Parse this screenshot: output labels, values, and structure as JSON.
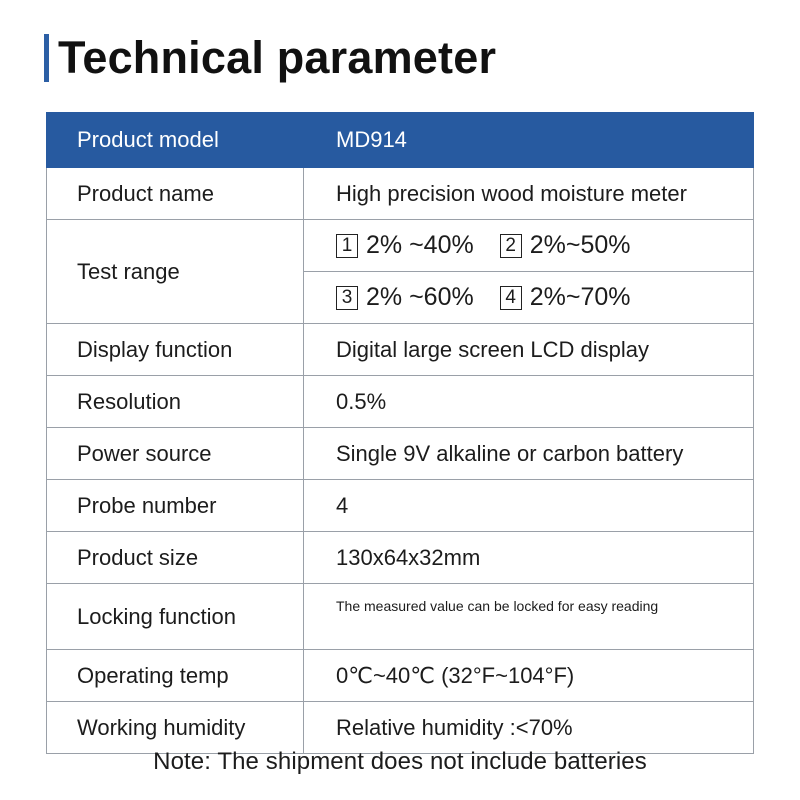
{
  "title": "Technical parameter",
  "table": {
    "header": {
      "label": "Product model",
      "value": "MD914"
    },
    "product_name": {
      "label": "Product name",
      "value": "High precision wood moisture meter"
    },
    "test_range": {
      "label": "Test range",
      "ranges": [
        {
          "num": "1",
          "text": "2% ~40%"
        },
        {
          "num": "2",
          "text": "2%~50%"
        },
        {
          "num": "3",
          "text": "2% ~60%"
        },
        {
          "num": "4",
          "text": "2%~70%"
        }
      ]
    },
    "display_function": {
      "label": "Display function",
      "value": "Digital large screen LCD display"
    },
    "resolution": {
      "label": "Resolution",
      "value": "0.5%"
    },
    "power_source": {
      "label": "Power source",
      "value": "Single 9V alkaline or carbon battery"
    },
    "probe_number": {
      "label": "Probe number",
      "value": "4"
    },
    "product_size": {
      "label": "Product size",
      "value": "130x64x32mm"
    },
    "locking_function": {
      "label": "Locking function",
      "value": "The measured value can be locked for easy reading"
    },
    "operating_temp": {
      "label": "Operating temp",
      "value": "0℃~40℃ (32°F~104°F)"
    },
    "working_humidity": {
      "label": "Working humidity",
      "value": "Relative humidity :<70%"
    }
  },
  "note": "Note: The shipment does not include batteries",
  "colors": {
    "accent": "#275aa0",
    "border": "#9aa0a8",
    "text": "#1c1c1c"
  }
}
